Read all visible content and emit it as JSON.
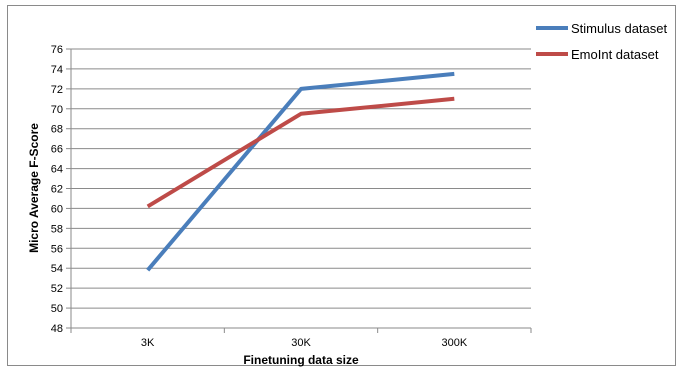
{
  "chart_data": {
    "type": "line",
    "title": "",
    "xlabel": "Finetuning data size",
    "ylabel": "Micro Average  F-Score",
    "categories": [
      "3K",
      "30K",
      "300K"
    ],
    "ylim": [
      48,
      76
    ],
    "ytick_step": 2,
    "yticks": [
      "48",
      "50",
      "52",
      "54",
      "56",
      "58",
      "60",
      "62",
      "64",
      "66",
      "68",
      "70",
      "72",
      "74",
      "76"
    ],
    "grid": true,
    "legend_position": "top-right",
    "series": [
      {
        "name": "Stimulus dataset",
        "values": [
          53.8,
          72.0,
          73.5
        ],
        "color": "#4a7ebb"
      },
      {
        "name": "EmoInt dataset",
        "values": [
          60.2,
          69.5,
          71.0
        ],
        "color": "#be4b48"
      }
    ]
  }
}
